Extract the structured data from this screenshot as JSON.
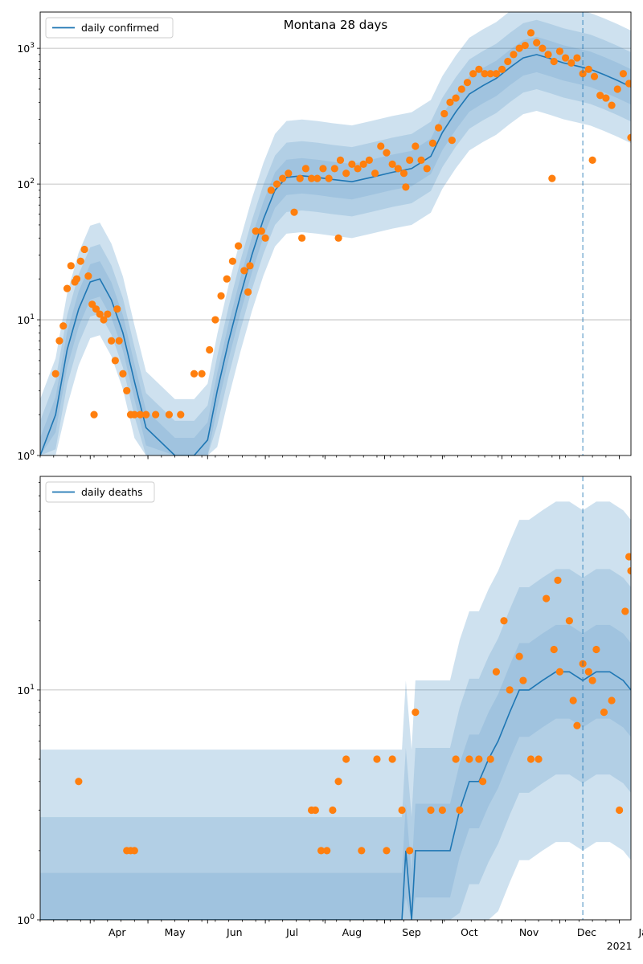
{
  "title": "Montana 28 days",
  "colors": {
    "line": "#1f77b4",
    "points": "#ff7f0e",
    "band": "#1f77b4",
    "grid": "#b0b0b0",
    "marker": "#1f77b4"
  },
  "x_ticks": [
    "Apr",
    "May",
    "Jun",
    "Jul",
    "Aug",
    "Sep",
    "Oct",
    "Nov",
    "Dec",
    "Jan"
  ],
  "x_year_label": "2021",
  "chart_data": [
    {
      "type": "line",
      "panel": "top",
      "title": "Montana 28 days",
      "legend": "daily confirmed",
      "legend_position": "top-left",
      "yscale": "log",
      "ylim": [
        1,
        1850
      ],
      "xlim": [
        "2020-03-06",
        "2021-01-07"
      ],
      "y_tick_labels": [
        "10^0",
        "10^1",
        "10^2",
        "10^3"
      ],
      "grid": "y-major",
      "forecast_marker": "2020-12-13",
      "series": [
        {
          "name": "daily confirmed",
          "x": [
            "2020-03-06",
            "2020-03-14",
            "2020-03-20",
            "2020-03-26",
            "2020-04-01",
            "2020-04-06",
            "2020-04-12",
            "2020-04-18",
            "2020-04-24",
            "2020-04-30",
            "2020-05-15",
            "2020-05-25",
            "2020-06-01",
            "2020-06-06",
            "2020-06-12",
            "2020-06-18",
            "2020-06-24",
            "2020-06-30",
            "2020-07-06",
            "2020-07-12",
            "2020-07-20",
            "2020-07-28",
            "2020-08-05",
            "2020-08-15",
            "2020-08-25",
            "2020-09-05",
            "2020-09-15",
            "2020-09-25",
            "2020-10-01",
            "2020-10-08",
            "2020-10-15",
            "2020-10-22",
            "2020-10-29",
            "2020-11-05",
            "2020-11-12",
            "2020-11-19",
            "2020-11-26",
            "2020-12-03",
            "2020-12-10",
            "2020-12-17",
            "2020-12-24",
            "2020-12-31",
            "2021-01-07"
          ],
          "values": [
            1,
            2,
            6,
            12,
            19,
            20,
            14,
            8,
            3.5,
            1.6,
            1,
            1,
            1.3,
            3,
            7,
            15,
            30,
            55,
            90,
            112,
            115,
            112,
            108,
            104,
            112,
            122,
            130,
            160,
            240,
            340,
            460,
            530,
            600,
            720,
            850,
            900,
            840,
            780,
            740,
            700,
            640,
            580,
            520
          ]
        }
      ],
      "points": {
        "x": [
          "2020-03-14",
          "2020-03-16",
          "2020-03-18",
          "2020-03-20",
          "2020-03-22",
          "2020-03-24",
          "2020-03-25",
          "2020-03-27",
          "2020-03-29",
          "2020-03-31",
          "2020-04-02",
          "2020-04-04",
          "2020-04-06",
          "2020-04-08",
          "2020-04-10",
          "2020-04-12",
          "2020-04-14",
          "2020-04-16",
          "2020-04-18",
          "2020-04-20",
          "2020-04-22",
          "2020-04-24",
          "2020-04-27",
          "2020-04-30",
          "2020-05-05",
          "2020-05-12",
          "2020-05-18",
          "2020-05-25",
          "2020-05-29",
          "2020-06-02",
          "2020-06-05",
          "2020-06-08",
          "2020-06-11",
          "2020-06-14",
          "2020-06-17",
          "2020-06-20",
          "2020-06-23",
          "2020-06-26",
          "2020-06-29",
          "2020-07-01",
          "2020-07-04",
          "2020-07-07",
          "2020-07-10",
          "2020-07-13",
          "2020-07-16",
          "2020-07-19",
          "2020-07-22",
          "2020-07-25",
          "2020-07-28",
          "2020-07-31",
          "2020-08-03",
          "2020-08-06",
          "2020-08-09",
          "2020-08-12",
          "2020-08-15",
          "2020-08-18",
          "2020-08-21",
          "2020-08-24",
          "2020-08-27",
          "2020-08-30",
          "2020-09-02",
          "2020-09-05",
          "2020-09-08",
          "2020-09-11",
          "2020-09-14",
          "2020-09-17",
          "2020-09-20",
          "2020-09-23",
          "2020-09-26",
          "2020-09-29",
          "2020-10-02",
          "2020-10-05",
          "2020-10-08",
          "2020-10-11",
          "2020-10-14",
          "2020-10-17",
          "2020-10-20",
          "2020-10-23",
          "2020-10-26",
          "2020-10-29",
          "2020-11-01",
          "2020-11-04",
          "2020-11-07",
          "2020-11-10",
          "2020-11-13",
          "2020-11-16",
          "2020-11-19",
          "2020-11-22",
          "2020-11-25",
          "2020-11-28",
          "2020-12-01",
          "2020-12-04",
          "2020-12-07",
          "2020-12-10",
          "2020-12-13",
          "2020-12-16",
          "2020-12-19",
          "2020-12-22",
          "2020-12-25",
          "2020-12-28",
          "2020-12-31",
          "2021-01-03",
          "2021-01-06",
          "2020-04-03",
          "2020-04-15",
          "2020-06-22",
          "2020-07-20",
          "2020-08-08",
          "2020-09-12",
          "2020-10-06",
          "2020-11-27",
          "2020-12-18",
          "2021-01-07"
        ],
        "values": [
          4,
          7,
          9,
          17,
          25,
          19,
          20,
          27,
          33,
          21,
          13,
          12,
          11,
          10,
          11,
          7,
          5,
          7,
          4,
          3,
          2,
          2,
          2,
          2,
          2,
          2,
          2,
          4,
          4,
          6,
          10,
          15,
          20,
          27,
          35,
          23,
          25,
          45,
          45,
          40,
          90,
          100,
          110,
          120,
          62,
          110,
          130,
          110,
          110,
          130,
          110,
          130,
          150,
          120,
          140,
          130,
          140,
          150,
          120,
          190,
          170,
          140,
          130,
          120,
          150,
          190,
          150,
          130,
          200,
          260,
          330,
          400,
          430,
          500,
          560,
          650,
          700,
          650,
          650,
          650,
          700,
          800,
          900,
          1000,
          1050,
          1300,
          1100,
          1000,
          900,
          800,
          950,
          850,
          780,
          850,
          650,
          700,
          620,
          450,
          430,
          380,
          500,
          650,
          550,
          2,
          12,
          16,
          40,
          40,
          95,
          210,
          110,
          150,
          220
        ]
      }
    },
    {
      "type": "line",
      "panel": "bottom",
      "legend": "daily deaths",
      "legend_position": "top-left",
      "yscale": "log",
      "ylim": [
        1,
        85
      ],
      "xlim": [
        "2020-03-06",
        "2021-01-07"
      ],
      "y_tick_labels": [
        "10^0",
        "10^1"
      ],
      "grid": "y-major",
      "forecast_marker": "2020-12-13",
      "series": [
        {
          "name": "daily deaths",
          "x": [
            "2020-03-06",
            "2020-07-20",
            "2020-09-10",
            "2020-09-12",
            "2020-09-15",
            "2020-09-17",
            "2020-09-20",
            "2020-10-01",
            "2020-10-05",
            "2020-10-10",
            "2020-10-15",
            "2020-10-20",
            "2020-10-25",
            "2020-10-30",
            "2020-11-05",
            "2020-11-10",
            "2020-11-15",
            "2020-11-22",
            "2020-11-29",
            "2020-12-06",
            "2020-12-13",
            "2020-12-20",
            "2020-12-27",
            "2021-01-03",
            "2021-01-07"
          ],
          "values": [
            1,
            1,
            1,
            2,
            1,
            2,
            2,
            2,
            2,
            3,
            4,
            4,
            5,
            6,
            8,
            10,
            10,
            11,
            12,
            12,
            11,
            12,
            12,
            11,
            10
          ]
        }
      ],
      "points": {
        "x": [
          "2020-03-26",
          "2020-04-20",
          "2020-04-22",
          "2020-04-24",
          "2020-07-25",
          "2020-07-27",
          "2020-07-30",
          "2020-08-05",
          "2020-08-08",
          "2020-08-12",
          "2020-08-20",
          "2020-08-28",
          "2020-09-02",
          "2020-09-05",
          "2020-09-10",
          "2020-09-17",
          "2020-09-25",
          "2020-10-01",
          "2020-10-08",
          "2020-10-15",
          "2020-10-20",
          "2020-10-22",
          "2020-10-26",
          "2020-10-29",
          "2020-11-02",
          "2020-11-05",
          "2020-11-10",
          "2020-11-12",
          "2020-11-16",
          "2020-11-20",
          "2020-11-24",
          "2020-11-28",
          "2020-12-01",
          "2020-12-06",
          "2020-12-08",
          "2020-12-10",
          "2020-12-13",
          "2020-12-16",
          "2020-12-20",
          "2020-12-24",
          "2020-12-28",
          "2021-01-01",
          "2021-01-04",
          "2021-01-07",
          "2020-09-14",
          "2020-08-02",
          "2020-10-10",
          "2020-11-30",
          "2020-12-18",
          "2021-01-06"
        ],
        "values": [
          4,
          2,
          2,
          2,
          3,
          3,
          2,
          3,
          4,
          5,
          2,
          5,
          2,
          5,
          3,
          8,
          3,
          3,
          5,
          5,
          5,
          4,
          5,
          12,
          20,
          10,
          14,
          11,
          5,
          5,
          25,
          15,
          12,
          20,
          9,
          7,
          13,
          12,
          15,
          8,
          9,
          3,
          22,
          33,
          2,
          2,
          3,
          30,
          11,
          38
        ]
      }
    }
  ]
}
